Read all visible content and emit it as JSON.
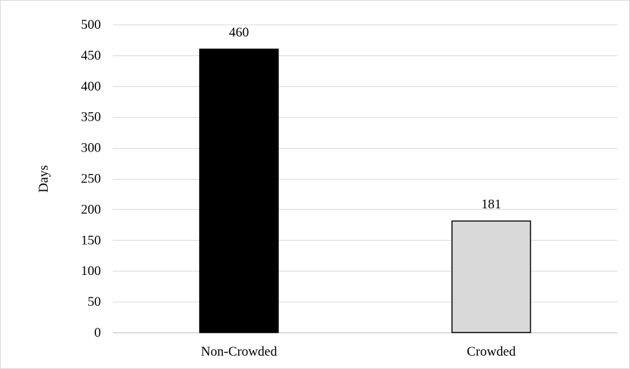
{
  "chart_data": {
    "type": "bar",
    "categories": [
      "Non-Crowded",
      "Crowded"
    ],
    "values": [
      460,
      181
    ],
    "data_labels": [
      "460",
      "181"
    ],
    "bar_fills": [
      "#000000",
      "#d9d9d9"
    ],
    "bar_stroke": "#000000",
    "ylabel": "Days",
    "xlabel": "",
    "title": "",
    "ylim": [
      0,
      500
    ],
    "yticks": [
      0,
      50,
      100,
      150,
      200,
      250,
      300,
      350,
      400,
      450,
      500
    ],
    "ytick_labels": [
      "0",
      "50",
      "100",
      "150",
      "200",
      "250",
      "300",
      "350",
      "400",
      "450",
      "500"
    ],
    "grid": true,
    "legend": "none"
  }
}
